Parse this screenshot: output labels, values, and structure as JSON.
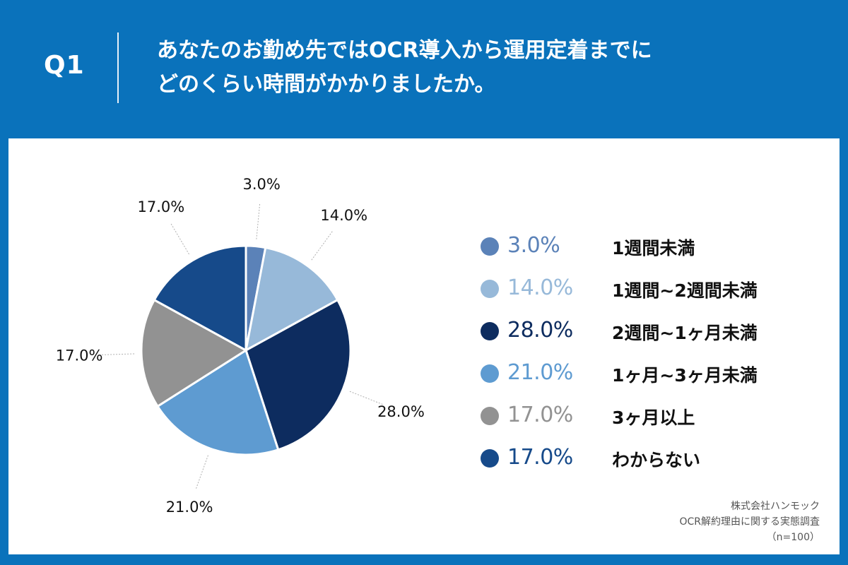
{
  "header": {
    "question_number": "Q1",
    "title_lines": [
      "あなたのお勤め先ではOCR導入から運用定着までに",
      "どのくらい時間がかかりましたか。"
    ]
  },
  "colors": {
    "background": "#0a72bb",
    "panel": "#ffffff",
    "slices": [
      "#5b82b8",
      "#97b9d9",
      "#0d2c5f",
      "#5e9bd1",
      "#929292",
      "#164a8a"
    ]
  },
  "chart_data": {
    "type": "pie",
    "title": "",
    "start_angle_deg": 0,
    "direction": "clockwise",
    "slices": [
      {
        "label": "1週間未満",
        "value": 3.0,
        "display": "3.0%"
      },
      {
        "label": "1週間~2週間未満",
        "value": 14.0,
        "display": "14.0%"
      },
      {
        "label": "2週間~1ヶ月未満",
        "value": 28.0,
        "display": "28.0%"
      },
      {
        "label": "1ヶ月~3ヶ月未満",
        "value": 21.0,
        "display": "21.0%"
      },
      {
        "label": "3ヶ月以上",
        "value": 17.0,
        "display": "17.0%"
      },
      {
        "label": "わからない",
        "value": 17.0,
        "display": "17.0%"
      }
    ],
    "legend_placement": "right"
  },
  "source": {
    "company": "株式会社ハンモック",
    "survey": "OCR解約理由に関する実態調査",
    "sample": "（n=100）"
  }
}
